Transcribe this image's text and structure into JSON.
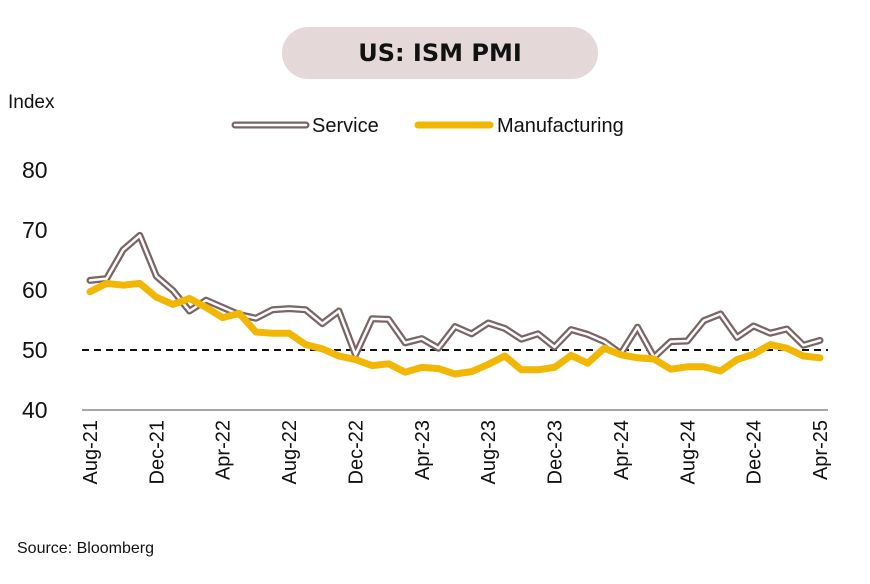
{
  "chart_data": {
    "type": "line",
    "title": "US: ISM PMI",
    "ylabel": "Index",
    "xlabel": "",
    "ylim": [
      40,
      80
    ],
    "yticks": [
      40,
      50,
      60,
      70,
      80
    ],
    "x": [
      "Aug-21",
      "Sep-21",
      "Oct-21",
      "Nov-21",
      "Dec-21",
      "Jan-22",
      "Feb-22",
      "Mar-22",
      "Apr-22",
      "May-22",
      "Jun-22",
      "Jul-22",
      "Aug-22",
      "Sep-22",
      "Oct-22",
      "Nov-22",
      "Dec-22",
      "Jan-23",
      "Feb-23",
      "Mar-23",
      "Apr-23",
      "May-23",
      "Jun-23",
      "Jul-23",
      "Aug-23",
      "Sep-23",
      "Oct-23",
      "Nov-23",
      "Dec-23",
      "Jan-24",
      "Feb-24",
      "Mar-24",
      "Apr-24",
      "May-24",
      "Jun-24",
      "Jul-24",
      "Aug-24",
      "Sep-24",
      "Oct-24",
      "Nov-24",
      "Dec-24",
      "Jan-25",
      "Feb-25",
      "Mar-25",
      "Apr-25"
    ],
    "xtick_labels": [
      "Aug-21",
      "Dec-21",
      "Apr-22",
      "Aug-22",
      "Dec-22",
      "Apr-23",
      "Aug-23",
      "Dec-23",
      "Apr-24",
      "Aug-24",
      "Dec-24",
      "Apr-25"
    ],
    "reference_line": 50,
    "legend_position": "top-center",
    "series": [
      {
        "name": "Service",
        "color": "#7a6466",
        "values": [
          61.6,
          61.9,
          66.7,
          69.1,
          62.3,
          59.9,
          56.5,
          58.3,
          57.1,
          55.9,
          55.3,
          56.7,
          56.9,
          56.7,
          54.4,
          56.5,
          49.2,
          55.2,
          55.1,
          51.2,
          51.9,
          50.3,
          53.9,
          52.7,
          54.5,
          53.6,
          51.8,
          52.7,
          50.5,
          53.4,
          52.6,
          51.4,
          49.4,
          53.8,
          48.8,
          51.4,
          51.5,
          54.9,
          56.0,
          52.1,
          54.0,
          52.8,
          53.5,
          50.8,
          51.6
        ]
      },
      {
        "name": "Manufacturing",
        "color": "#f2b705",
        "values": [
          59.7,
          61.1,
          60.8,
          61.1,
          58.8,
          57.6,
          58.6,
          57.1,
          55.4,
          56.1,
          53.0,
          52.8,
          52.8,
          50.9,
          50.2,
          49.0,
          48.4,
          47.4,
          47.7,
          46.3,
          47.1,
          46.9,
          46.0,
          46.4,
          47.6,
          49.0,
          46.7,
          46.7,
          47.1,
          49.1,
          47.8,
          50.3,
          49.2,
          48.7,
          48.5,
          46.8,
          47.2,
          47.2,
          46.5,
          48.4,
          49.3,
          50.9,
          50.3,
          49.0,
          48.7
        ]
      }
    ]
  },
  "source": "Source: Bloomberg"
}
